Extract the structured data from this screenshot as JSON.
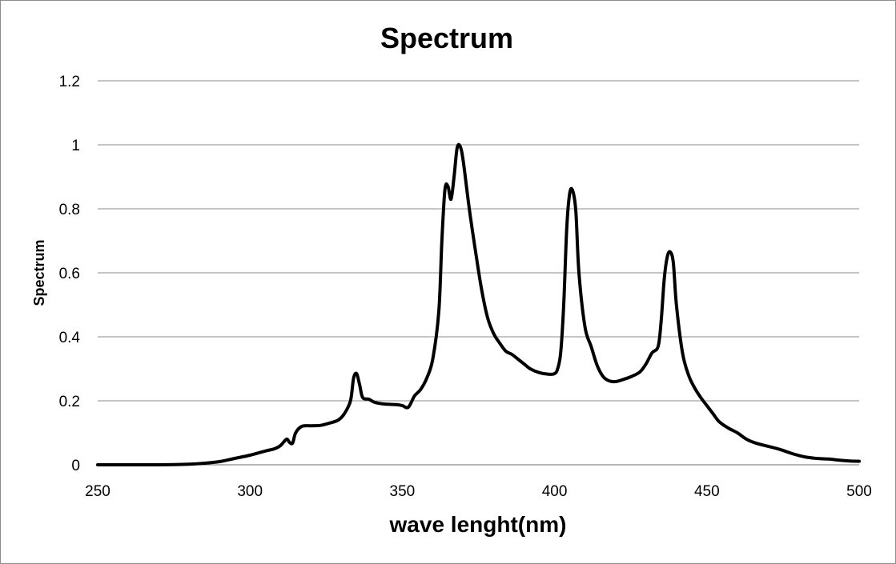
{
  "chart_data": {
    "type": "line",
    "title": "Spectrum",
    "xlabel": "wave lenght(nm)",
    "ylabel": "Spectrum",
    "xlim": [
      250,
      500
    ],
    "ylim": [
      0,
      1.2
    ],
    "x_ticks": [
      "250",
      "300",
      "350",
      "400",
      "450",
      "500"
    ],
    "y_ticks": [
      "0",
      "0.2",
      "0.4",
      "0.6",
      "0.8",
      "1",
      "1.2"
    ],
    "grid": true,
    "legend": "none",
    "series": [
      {
        "color": "#000000",
        "points": [
          [
            250,
            0.0
          ],
          [
            260,
            0.0
          ],
          [
            270,
            0.0
          ],
          [
            280,
            0.002
          ],
          [
            285,
            0.005
          ],
          [
            290,
            0.01
          ],
          [
            295,
            0.02
          ],
          [
            300,
            0.03
          ],
          [
            305,
            0.043
          ],
          [
            308,
            0.05
          ],
          [
            310,
            0.06
          ],
          [
            312,
            0.08
          ],
          [
            313,
            0.07
          ],
          [
            314,
            0.068
          ],
          [
            315,
            0.1
          ],
          [
            317,
            0.12
          ],
          [
            320,
            0.122
          ],
          [
            323,
            0.123
          ],
          [
            326,
            0.13
          ],
          [
            329,
            0.14
          ],
          [
            331,
            0.16
          ],
          [
            333,
            0.2
          ],
          [
            334,
            0.27
          ],
          [
            335,
            0.285
          ],
          [
            336,
            0.25
          ],
          [
            337,
            0.21
          ],
          [
            339,
            0.205
          ],
          [
            341,
            0.195
          ],
          [
            344,
            0.19
          ],
          [
            348,
            0.188
          ],
          [
            350,
            0.185
          ],
          [
            352,
            0.18
          ],
          [
            354,
            0.215
          ],
          [
            356,
            0.235
          ],
          [
            358,
            0.27
          ],
          [
            360,
            0.33
          ],
          [
            362,
            0.48
          ],
          [
            363,
            0.7
          ],
          [
            364,
            0.86
          ],
          [
            365,
            0.87
          ],
          [
            366,
            0.83
          ],
          [
            367,
            0.9
          ],
          [
            368,
            0.99
          ],
          [
            369,
            0.995
          ],
          [
            370,
            0.95
          ],
          [
            372,
            0.8
          ],
          [
            374,
            0.67
          ],
          [
            376,
            0.55
          ],
          [
            378,
            0.46
          ],
          [
            380,
            0.41
          ],
          [
            382,
            0.38
          ],
          [
            384,
            0.355
          ],
          [
            386,
            0.345
          ],
          [
            388,
            0.33
          ],
          [
            390,
            0.315
          ],
          [
            392,
            0.3
          ],
          [
            395,
            0.288
          ],
          [
            398,
            0.283
          ],
          [
            400,
            0.285
          ],
          [
            401,
            0.3
          ],
          [
            402,
            0.35
          ],
          [
            403,
            0.5
          ],
          [
            404,
            0.74
          ],
          [
            405,
            0.85
          ],
          [
            406,
            0.855
          ],
          [
            407,
            0.79
          ],
          [
            408,
            0.6
          ],
          [
            410,
            0.43
          ],
          [
            412,
            0.37
          ],
          [
            414,
            0.31
          ],
          [
            416,
            0.275
          ],
          [
            418,
            0.262
          ],
          [
            420,
            0.26
          ],
          [
            422,
            0.265
          ],
          [
            425,
            0.275
          ],
          [
            428,
            0.29
          ],
          [
            430,
            0.315
          ],
          [
            432,
            0.35
          ],
          [
            434,
            0.37
          ],
          [
            435,
            0.45
          ],
          [
            436,
            0.58
          ],
          [
            437,
            0.65
          ],
          [
            438,
            0.665
          ],
          [
            439,
            0.63
          ],
          [
            440,
            0.5
          ],
          [
            442,
            0.35
          ],
          [
            444,
            0.28
          ],
          [
            446,
            0.24
          ],
          [
            448,
            0.21
          ],
          [
            450,
            0.185
          ],
          [
            452,
            0.16
          ],
          [
            454,
            0.135
          ],
          [
            457,
            0.115
          ],
          [
            460,
            0.1
          ],
          [
            463,
            0.08
          ],
          [
            466,
            0.068
          ],
          [
            470,
            0.058
          ],
          [
            474,
            0.048
          ],
          [
            478,
            0.035
          ],
          [
            482,
            0.025
          ],
          [
            486,
            0.02
          ],
          [
            490,
            0.018
          ],
          [
            494,
            0.014
          ],
          [
            497,
            0.012
          ],
          [
            500,
            0.011
          ]
        ]
      }
    ]
  }
}
